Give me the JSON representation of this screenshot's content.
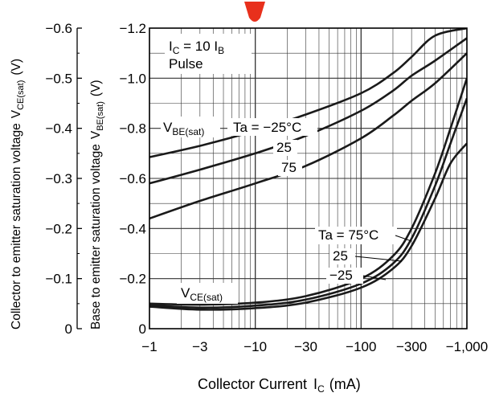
{
  "chart_data": {
    "type": "line",
    "x_scale": "log",
    "grid": true,
    "xlabel_text": "Collector Current",
    "xlabel_symbol": "I",
    "xlabel_sub": "C",
    "xlabel_unit": "(mA)",
    "xlim": [
      -1,
      -1000
    ],
    "x_ticks": [
      {
        "value": -1,
        "label": "−1"
      },
      {
        "value": -3,
        "label": "−3"
      },
      {
        "value": -10,
        "label": "−10"
      },
      {
        "value": -30,
        "label": "−30"
      },
      {
        "value": -100,
        "label": "−100"
      },
      {
        "value": -300,
        "label": "−300"
      },
      {
        "value": -1000,
        "label": "−1,000"
      }
    ],
    "y_left": {
      "label_text": "Collector to emitter saturation voltage",
      "label_symbol": "V",
      "label_sub": "CE(sat)",
      "label_unit": "(V)",
      "lim": [
        0,
        -0.6
      ],
      "ticks": [
        {
          "value": 0,
          "label": "0"
        },
        {
          "value": -0.1,
          "label": "−0.1"
        },
        {
          "value": -0.2,
          "label": "−0.2"
        },
        {
          "value": -0.3,
          "label": "−0.3"
        },
        {
          "value": -0.4,
          "label": "−0.4"
        },
        {
          "value": -0.5,
          "label": "−0.5"
        },
        {
          "value": -0.6,
          "label": "−0.6"
        }
      ]
    },
    "y_right": {
      "label_text": "Base to emitter saturation voltage",
      "label_symbol": "V",
      "label_sub": "BE(sat)",
      "label_unit": "(V)",
      "lim": [
        0,
        -1.2
      ],
      "ticks": [
        {
          "value": 0,
          "label": "0"
        },
        {
          "value": -0.2,
          "label": "−0.2"
        },
        {
          "value": -0.4,
          "label": "−0.4"
        },
        {
          "value": -0.6,
          "label": "−0.6"
        },
        {
          "value": -0.8,
          "label": "−0.8"
        },
        {
          "value": -1.0,
          "label": "−1.0"
        },
        {
          "value": -1.2,
          "label": "−1.2"
        }
      ]
    },
    "condition_line1": {
      "a": "I",
      "a_sub": "C",
      "mid": " = 10 I",
      "b_sub": "B"
    },
    "condition_line2": "Pulse",
    "vbe_group_label": {
      "text": "V",
      "sub": "BE(sat)"
    },
    "vce_group_label": {
      "text": "V",
      "sub": "CE(sat)"
    },
    "series": [
      {
        "name": "Ta = −25°C",
        "group": "VBE(sat)",
        "axis": "right",
        "x": [
          -1,
          -3,
          -10,
          -30,
          -100,
          -200,
          -300,
          -500,
          -1000
        ],
        "y": [
          -0.685,
          -0.73,
          -0.79,
          -0.855,
          -0.94,
          -1.02,
          -1.085,
          -1.17,
          -1.2
        ]
      },
      {
        "name": "25",
        "group": "VBE(sat)",
        "axis": "right",
        "x": [
          -1,
          -3,
          -10,
          -30,
          -100,
          -200,
          -300,
          -500,
          -1000
        ],
        "y": [
          -0.58,
          -0.635,
          -0.7,
          -0.77,
          -0.87,
          -0.95,
          -1.01,
          -1.07,
          -1.16
        ]
      },
      {
        "name": "75",
        "group": "VBE(sat)",
        "axis": "right",
        "x": [
          -1,
          -3,
          -10,
          -30,
          -100,
          -200,
          -300,
          -500,
          -1000
        ],
        "y": [
          -0.44,
          -0.51,
          -0.58,
          -0.65,
          -0.76,
          -0.85,
          -0.91,
          -0.98,
          -1.1
        ]
      },
      {
        "name": "Ta = 75°C",
        "group": "VCE(sat)",
        "axis": "left",
        "x": [
          -1,
          -3,
          -10,
          -30,
          -100,
          -200,
          -300,
          -500,
          -700,
          -1000
        ],
        "y": [
          -0.05,
          -0.048,
          -0.052,
          -0.065,
          -0.1,
          -0.145,
          -0.2,
          -0.31,
          -0.4,
          -0.5
        ]
      },
      {
        "name": "25",
        "group": "VCE(sat)",
        "axis": "left",
        "x": [
          -1,
          -3,
          -10,
          -30,
          -100,
          -200,
          -300,
          -500,
          -700,
          -1000
        ],
        "y": [
          -0.047,
          -0.042,
          -0.046,
          -0.058,
          -0.09,
          -0.13,
          -0.18,
          -0.285,
          -0.37,
          -0.46
        ]
      },
      {
        "name": "−25",
        "group": "VCE(sat)",
        "axis": "left",
        "x": [
          -1,
          -3,
          -10,
          -30,
          -100,
          -200,
          -300,
          -500,
          -700,
          -1000
        ],
        "y": [
          -0.044,
          -0.038,
          -0.041,
          -0.052,
          -0.082,
          -0.12,
          -0.165,
          -0.26,
          -0.33,
          -0.37
        ]
      }
    ],
    "line_color": "#1a1a1a",
    "grid_color": "#333333"
  }
}
